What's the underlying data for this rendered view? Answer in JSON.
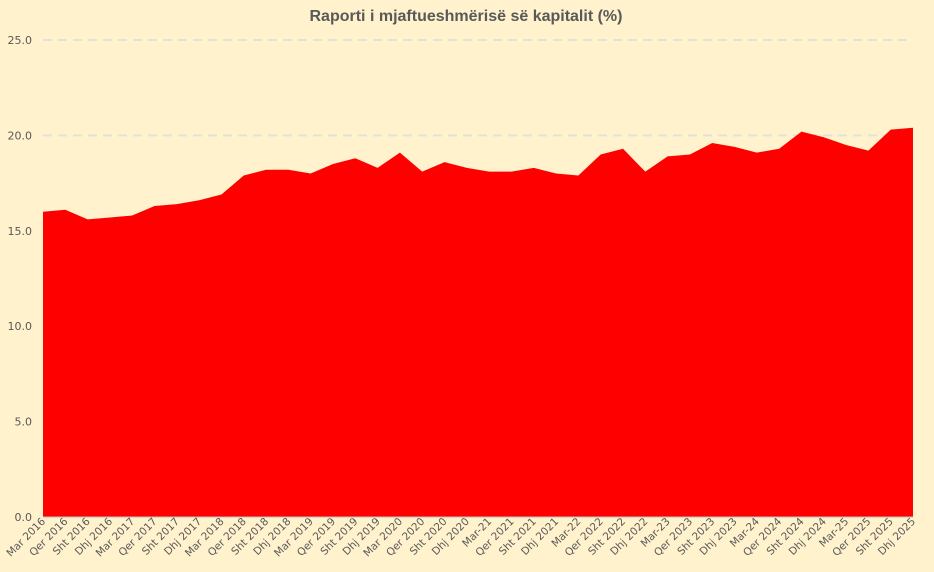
{
  "chart_data": {
    "type": "area",
    "title": "Raporti i mjaftueshmërisë së kapitalit (%)",
    "xlabel": "",
    "ylabel": "",
    "ylim": [
      0,
      25
    ],
    "yticks": [
      "0.0",
      "5.0",
      "10.0",
      "15.0",
      "20.0",
      "25.0"
    ],
    "grid": true,
    "legend": "none",
    "colors": {
      "area": "#FF0000",
      "background": "#FFF2CC",
      "grid": "#E3E1DA",
      "text": "#595959"
    },
    "x": [
      "Mar 2016",
      "Qer 2016",
      "Sht 2016",
      "Dhj 2016",
      "Mar 2017",
      "Qer 2017",
      "Sht 2017",
      "Dhj 2017",
      "Mar 2018",
      "Qer 2018",
      "Sht 2018",
      "Dhj 2018",
      "Mar 2019",
      "Qer 2019",
      "Sht 2019",
      "Dhj 2019",
      "Mar 2020",
      "Qer 2020",
      "Sht 2020",
      "Dhj 2020",
      "Mar-21",
      "Qer 2021",
      "Sht 2021",
      "Dhj 2021",
      "Mar-22",
      "Qer 2022",
      "Sht 2022",
      "Dhj 2022",
      "Mar-23",
      "Qer 2023",
      "Sht 2023",
      "Dhj 2023",
      "Mar-24",
      "Qer 2024",
      "Sht 2024",
      "Dhj 2024",
      "Mar-25",
      "Qer 2025",
      "Sht 2025",
      "Dhj 2025"
    ],
    "values": [
      16.0,
      16.1,
      15.6,
      15.7,
      15.8,
      16.3,
      16.4,
      16.6,
      16.9,
      17.9,
      18.2,
      18.2,
      18.0,
      18.5,
      18.8,
      18.3,
      19.1,
      18.1,
      18.6,
      18.3,
      18.1,
      18.1,
      18.3,
      18.0,
      17.9,
      19.0,
      19.3,
      18.1,
      18.9,
      19.0,
      19.6,
      19.4,
      19.1,
      19.3,
      20.2,
      19.9,
      19.5,
      19.2,
      20.3,
      20.4
    ]
  }
}
